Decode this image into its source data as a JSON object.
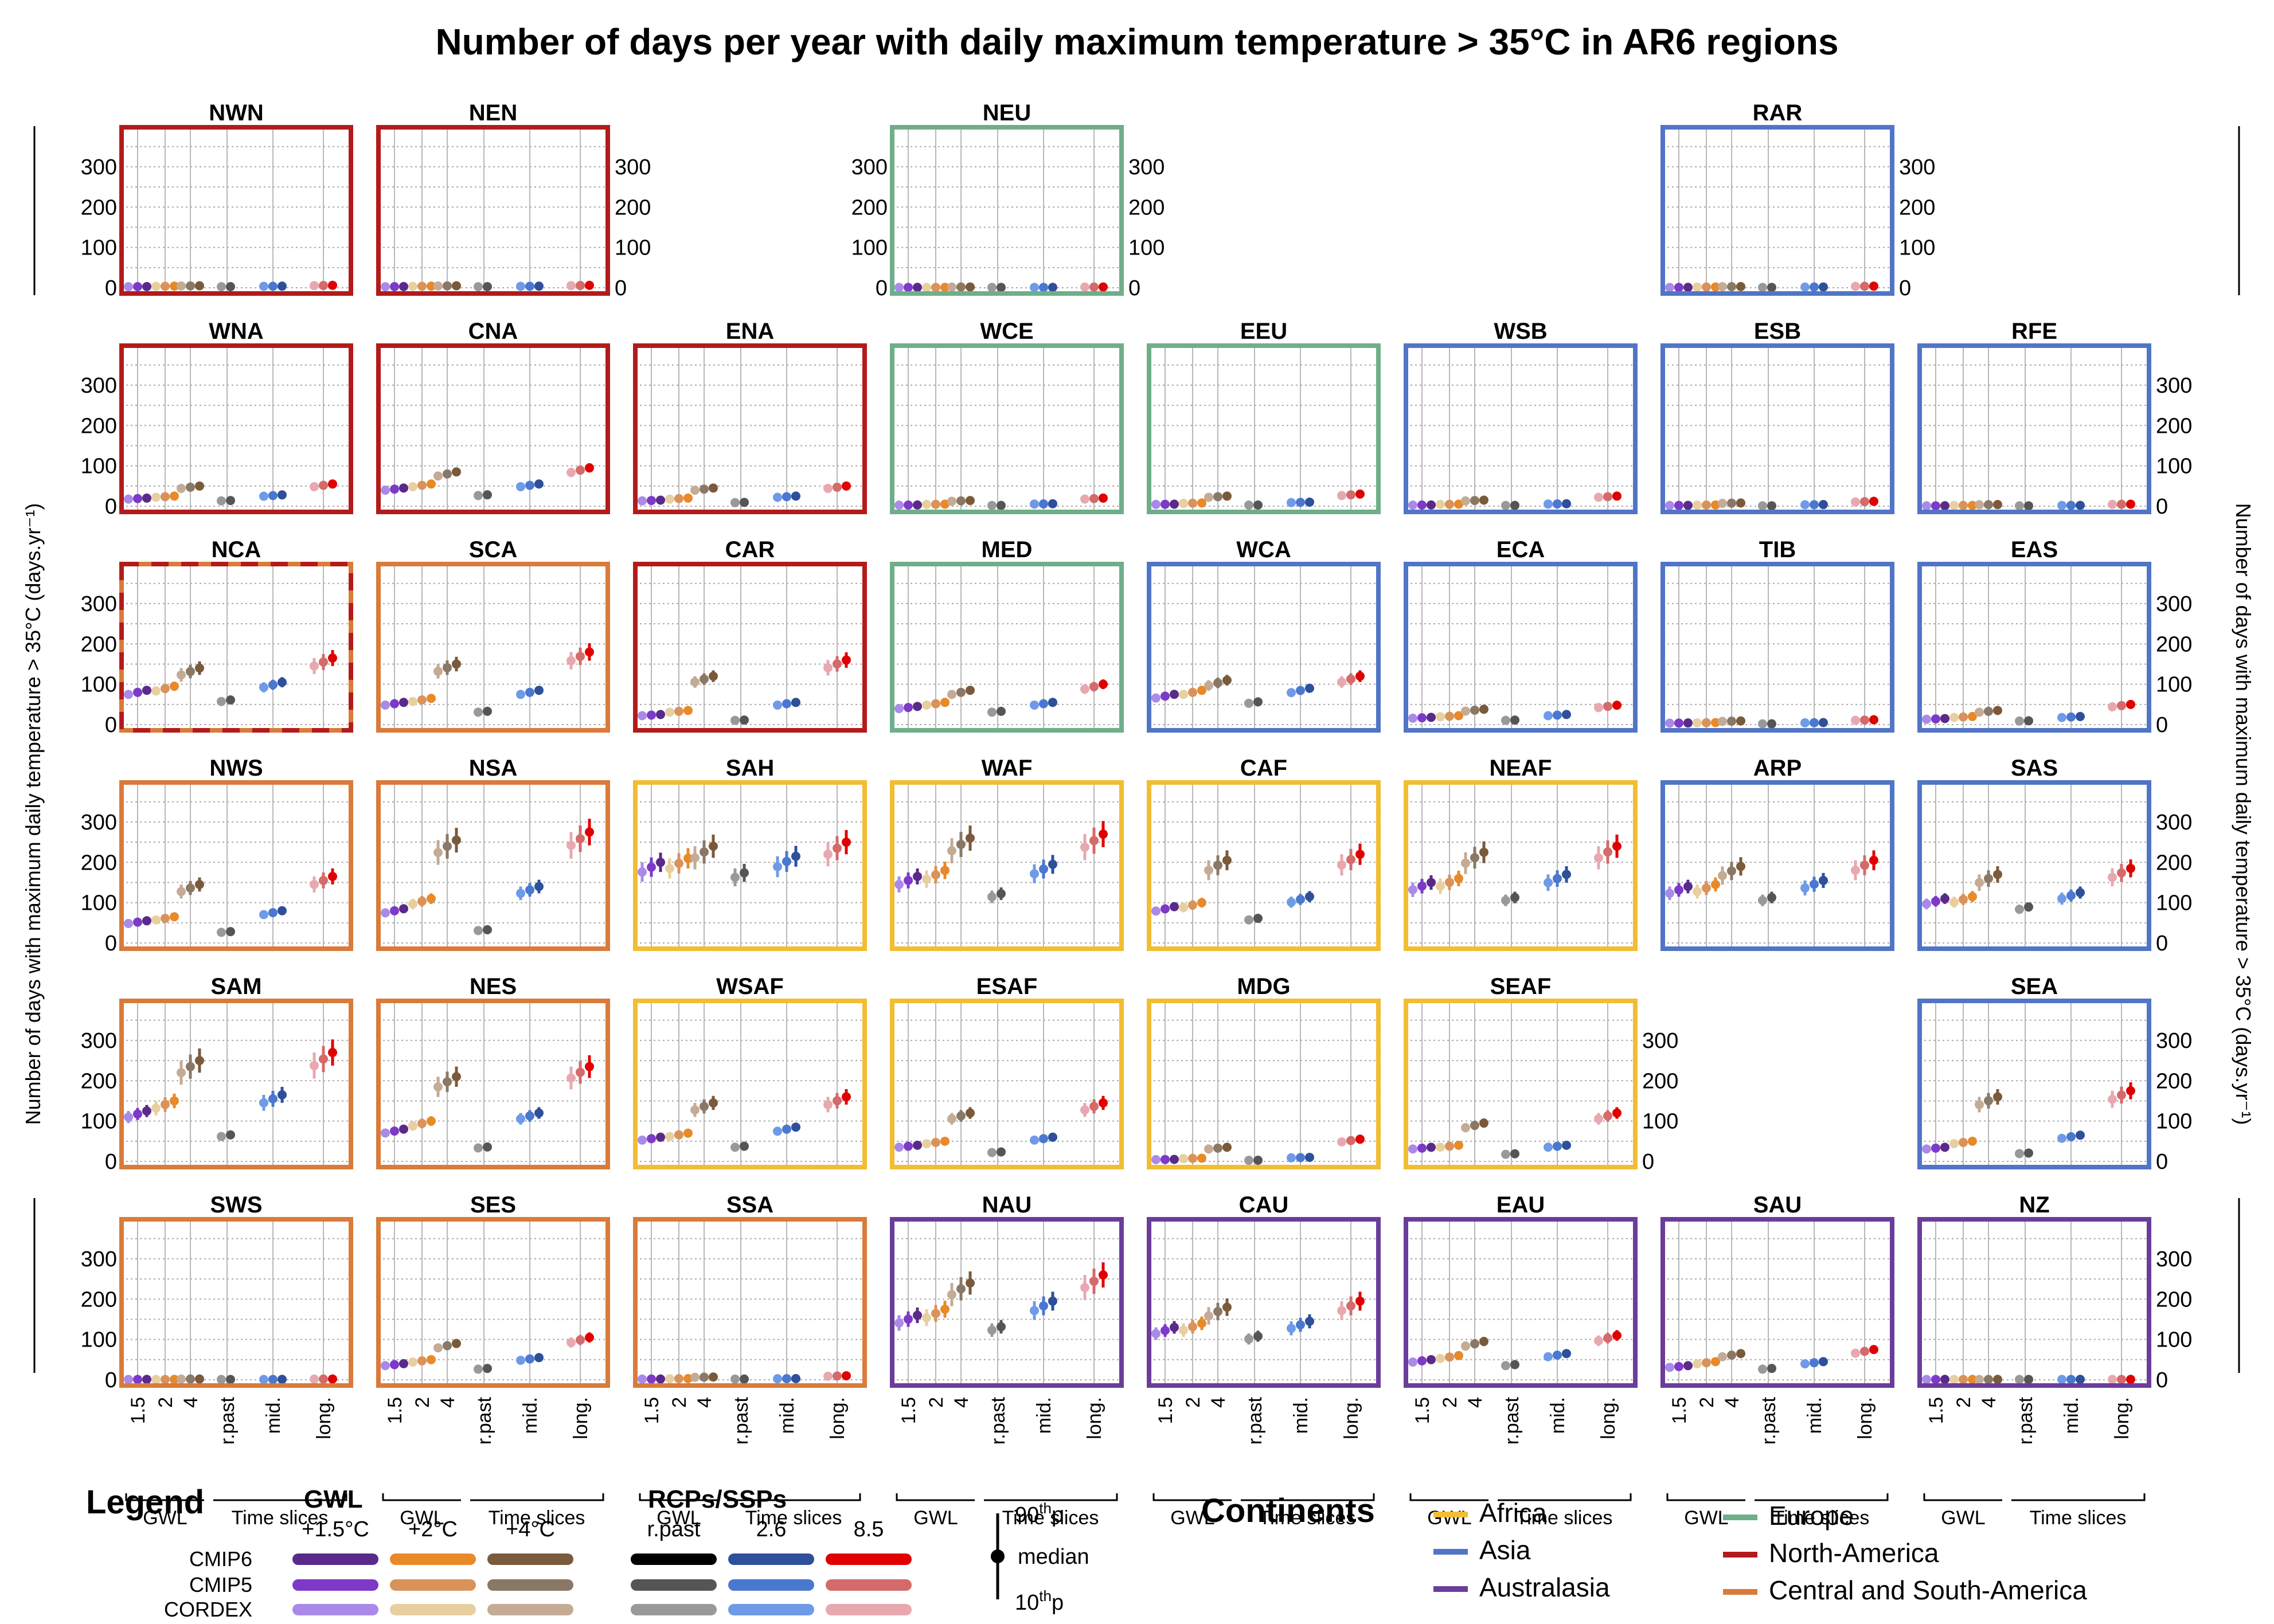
{
  "title": "Number of days per year with daily maximum temperature > 35°C in AR6 regions",
  "ylabel": "Number of days with maximum daily temperature > 35°C (days.yr⁻¹)",
  "yticks": [
    0,
    100,
    200,
    300
  ],
  "xcat_labels": [
    "1.5",
    "2",
    "4",
    "r.past",
    "mid.",
    "long."
  ],
  "xgroup_labels": {
    "gwl": "GWL",
    "ts": "Time slices"
  },
  "continent_colors": {
    "Africa": "#f2bd33",
    "Asia": "#5175c6",
    "Australasia": "#6a3d9a",
    "Europe": "#6fae8a",
    "North-America": "#b31b1b",
    "Central and South-America": "#d97b3a"
  },
  "legend": {
    "title": "Legend",
    "gwl_title": "GWL",
    "gwl_levels": [
      "+1.5°C",
      "+2°C",
      "+4°C"
    ],
    "rcp_title": "RCPs/SSPs",
    "rcp_levels": [
      "r.past",
      "2.6",
      "8.5"
    ],
    "ensembles": [
      "CMIP6",
      "CMIP5",
      "CORDEX"
    ],
    "swatches": [
      [
        "#5a2a8a",
        "#e8892a",
        "#7a5a3a",
        "#000000",
        "#2e4f9a",
        "#e00000"
      ],
      [
        "#7d3ac8",
        "#d9935a",
        "#8a7866",
        "#555555",
        "#4a78d0",
        "#d46a6a"
      ],
      [
        "#a98ae8",
        "#e8cfa0",
        "#c4ab95",
        "#999999",
        "#6f9ae8",
        "#e8a8b0"
      ]
    ],
    "whisker": {
      "top": "90",
      "top_sup": "th",
      "top_suffix": "p",
      "mid": "median",
      "bottom": "10",
      "bottom_sup": "th",
      "bottom_suffix": "p"
    },
    "continents_title": "Continents",
    "continents": [
      "Africa",
      "Asia",
      "Australasia",
      "Europe",
      "North-America",
      "Central and South-America"
    ]
  },
  "chart_data": {
    "type": "scatter",
    "ylim": [
      0,
      365
    ],
    "categories": [
      "1.5",
      "2",
      "4",
      "r.past",
      "mid.",
      "long."
    ],
    "regions": [
      {
        "name": "NWN",
        "row": 0,
        "col": 0,
        "continent": "North-America",
        "values": [
          3,
          4,
          5,
          3,
          4,
          6
        ]
      },
      {
        "name": "NEN",
        "row": 0,
        "col": 1,
        "continent": "North-America",
        "values": [
          3,
          4,
          5,
          3,
          4,
          6
        ]
      },
      {
        "name": "NEU",
        "row": 0,
        "col": 3,
        "continent": "Europe",
        "values": [
          1,
          1,
          2,
          1,
          1,
          2
        ]
      },
      {
        "name": "RAR",
        "row": 0,
        "col": 6,
        "continent": "Asia",
        "values": [
          1,
          2,
          3,
          1,
          2,
          4
        ]
      },
      {
        "name": "WNA",
        "row": 1,
        "col": 0,
        "continent": "North-America",
        "values": [
          20,
          25,
          50,
          15,
          28,
          55
        ]
      },
      {
        "name": "CNA",
        "row": 1,
        "col": 1,
        "continent": "North-America",
        "values": [
          45,
          55,
          85,
          30,
          55,
          95
        ]
      },
      {
        "name": "ENA",
        "row": 1,
        "col": 2,
        "continent": "North-America",
        "values": [
          15,
          20,
          45,
          10,
          25,
          50
        ]
      },
      {
        "name": "WCE",
        "row": 1,
        "col": 3,
        "continent": "Europe",
        "values": [
          3,
          5,
          14,
          2,
          6,
          20
        ]
      },
      {
        "name": "EEU",
        "row": 1,
        "col": 4,
        "continent": "Europe",
        "values": [
          5,
          8,
          25,
          3,
          10,
          30
        ]
      },
      {
        "name": "WSB",
        "row": 1,
        "col": 5,
        "continent": "Asia",
        "values": [
          3,
          5,
          15,
          2,
          6,
          25
        ]
      },
      {
        "name": "ESB",
        "row": 1,
        "col": 6,
        "continent": "Asia",
        "values": [
          2,
          3,
          8,
          1,
          4,
          12
        ]
      },
      {
        "name": "RFE",
        "row": 1,
        "col": 7,
        "continent": "Asia",
        "values": [
          1,
          2,
          4,
          1,
          2,
          5
        ]
      },
      {
        "name": "NCA",
        "row": 2,
        "col": 0,
        "continent": "Central and South-America",
        "values": [
          85,
          95,
          140,
          65,
          105,
          165
        ]
      },
      {
        "name": "SCA",
        "row": 2,
        "col": 1,
        "continent": "Central and South-America",
        "values": [
          55,
          65,
          150,
          35,
          85,
          180
        ]
      },
      {
        "name": "CAR",
        "row": 2,
        "col": 2,
        "continent": "North-America",
        "values": [
          25,
          35,
          120,
          12,
          55,
          160
        ]
      },
      {
        "name": "MED",
        "row": 2,
        "col": 3,
        "continent": "Europe",
        "values": [
          45,
          55,
          85,
          35,
          55,
          100
        ]
      },
      {
        "name": "WCA",
        "row": 2,
        "col": 4,
        "continent": "Asia",
        "values": [
          75,
          85,
          110,
          60,
          90,
          120
        ]
      },
      {
        "name": "ECA",
        "row": 2,
        "col": 5,
        "continent": "Asia",
        "values": [
          18,
          22,
          38,
          12,
          25,
          48
        ]
      },
      {
        "name": "TIB",
        "row": 2,
        "col": 6,
        "continent": "Asia",
        "values": [
          4,
          5,
          9,
          2,
          5,
          12
        ]
      },
      {
        "name": "EAS",
        "row": 2,
        "col": 7,
        "continent": "Asia",
        "values": [
          15,
          20,
          35,
          10,
          20,
          50
        ]
      },
      {
        "name": "NWS",
        "row": 3,
        "col": 0,
        "continent": "Central and South-America",
        "values": [
          55,
          65,
          145,
          30,
          80,
          165
        ]
      },
      {
        "name": "NSA",
        "row": 3,
        "col": 1,
        "continent": "Central and South-America",
        "values": [
          85,
          110,
          255,
          35,
          140,
          275
        ]
      },
      {
        "name": "SAH",
        "row": 3,
        "col": 2,
        "continent": "Africa",
        "values": [
          200,
          210,
          240,
          185,
          215,
          250
        ]
      },
      {
        "name": "WAF",
        "row": 3,
        "col": 3,
        "continent": "Africa",
        "values": [
          165,
          180,
          260,
          130,
          195,
          270
        ]
      },
      {
        "name": "CAF",
        "row": 3,
        "col": 4,
        "continent": "Africa",
        "values": [
          90,
          100,
          205,
          65,
          115,
          220
        ]
      },
      {
        "name": "NEAF",
        "row": 3,
        "col": 5,
        "continent": "Africa",
        "values": [
          150,
          160,
          225,
          120,
          170,
          240
        ]
      },
      {
        "name": "ARP",
        "row": 3,
        "col": 6,
        "continent": "Asia",
        "values": [
          140,
          145,
          190,
          120,
          155,
          205
        ]
      },
      {
        "name": "SAS",
        "row": 3,
        "col": 7,
        "continent": "Asia",
        "values": [
          110,
          115,
          170,
          95,
          125,
          185
        ]
      },
      {
        "name": "SAM",
        "row": 4,
        "col": 0,
        "continent": "Central and South-America",
        "values": [
          125,
          150,
          250,
          70,
          165,
          270
        ]
      },
      {
        "name": "NES",
        "row": 4,
        "col": 1,
        "continent": "Central and South-America",
        "values": [
          80,
          100,
          210,
          38,
          120,
          235
        ]
      },
      {
        "name": "WSAF",
        "row": 4,
        "col": 2,
        "continent": "Africa",
        "values": [
          60,
          70,
          145,
          40,
          85,
          160
        ]
      },
      {
        "name": "ESAF",
        "row": 4,
        "col": 3,
        "continent": "Africa",
        "values": [
          40,
          50,
          120,
          25,
          60,
          145
        ]
      },
      {
        "name": "MDG",
        "row": 4,
        "col": 4,
        "continent": "Africa",
        "values": [
          5,
          8,
          35,
          3,
          10,
          55
        ]
      },
      {
        "name": "SEAF",
        "row": 4,
        "col": 5,
        "continent": "Africa",
        "values": [
          35,
          40,
          95,
          20,
          40,
          120
        ]
      },
      {
        "name": "SEA",
        "row": 4,
        "col": 7,
        "continent": "Asia",
        "values": [
          35,
          50,
          160,
          22,
          65,
          175
        ]
      },
      {
        "name": "SWS",
        "row": 5,
        "col": 0,
        "continent": "Central and South-America",
        "values": [
          1,
          1,
          2,
          1,
          1,
          2
        ]
      },
      {
        "name": "SES",
        "row": 5,
        "col": 1,
        "continent": "Central and South-America",
        "values": [
          40,
          50,
          90,
          30,
          55,
          105
        ]
      },
      {
        "name": "SSA",
        "row": 5,
        "col": 2,
        "continent": "Central and South-America",
        "values": [
          2,
          3,
          7,
          2,
          3,
          10
        ]
      },
      {
        "name": "NAU",
        "row": 5,
        "col": 3,
        "continent": "Australasia",
        "values": [
          160,
          175,
          240,
          140,
          195,
          260
        ]
      },
      {
        "name": "CAU",
        "row": 5,
        "col": 4,
        "continent": "Australasia",
        "values": [
          130,
          140,
          180,
          115,
          145,
          195
        ]
      },
      {
        "name": "EAU",
        "row": 5,
        "col": 5,
        "continent": "Australasia",
        "values": [
          50,
          60,
          95,
          40,
          65,
          110
        ]
      },
      {
        "name": "SAU",
        "row": 5,
        "col": 6,
        "continent": "Australasia",
        "values": [
          35,
          45,
          65,
          30,
          45,
          75
        ]
      },
      {
        "name": "NZ",
        "row": 5,
        "col": 7,
        "continent": "Australasia",
        "values": [
          1,
          1,
          1,
          1,
          1,
          1
        ]
      }
    ]
  }
}
